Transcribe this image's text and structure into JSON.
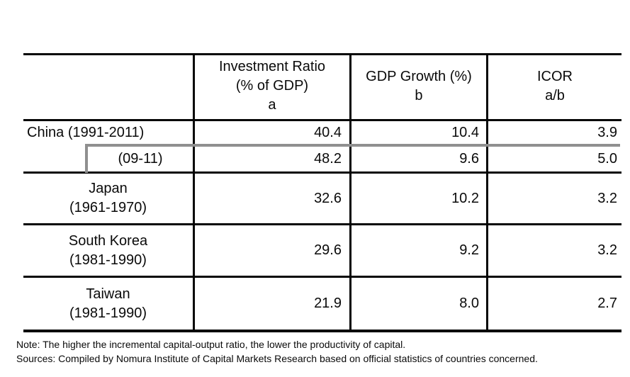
{
  "colors": {
    "rule": "#050505",
    "highlight_border": "#8f8f8f",
    "text": "#0a0a0a",
    "background": "#ffffff"
  },
  "table": {
    "headers": {
      "investment": {
        "line1": "Investment Ratio",
        "line2": "(% of GDP)",
        "line3": "a"
      },
      "gdp": {
        "line1": "GDP Growth (%)",
        "line2": "b"
      },
      "icor": {
        "line1": "ICOR",
        "line2": "a/b"
      }
    },
    "rows": [
      {
        "label1": "China (1991-2011)",
        "label2": "",
        "inv": "40.4",
        "gdp": "10.4",
        "icor": "3.9"
      },
      {
        "label1": "(09-11)",
        "label2": "",
        "inv": "48.2",
        "gdp": "9.6",
        "icor": "5.0"
      },
      {
        "label1": "Japan",
        "label2": "(1961-1970)",
        "inv": "32.6",
        "gdp": "10.2",
        "icor": "3.2"
      },
      {
        "label1": "South Korea",
        "label2": "(1981-1990)",
        "inv": "29.6",
        "gdp": "9.2",
        "icor": "3.2"
      },
      {
        "label1": "Taiwan",
        "label2": "(1981-1990)",
        "inv": "21.9",
        "gdp": "8.0",
        "icor": "2.7"
      }
    ]
  },
  "note": "Note: The higher the incremental capital-output ratio, the lower the productivity of capital.",
  "sources": "Sources: Compiled by Nomura Institute of Capital Markets Research based on official statistics of countries concerned."
}
